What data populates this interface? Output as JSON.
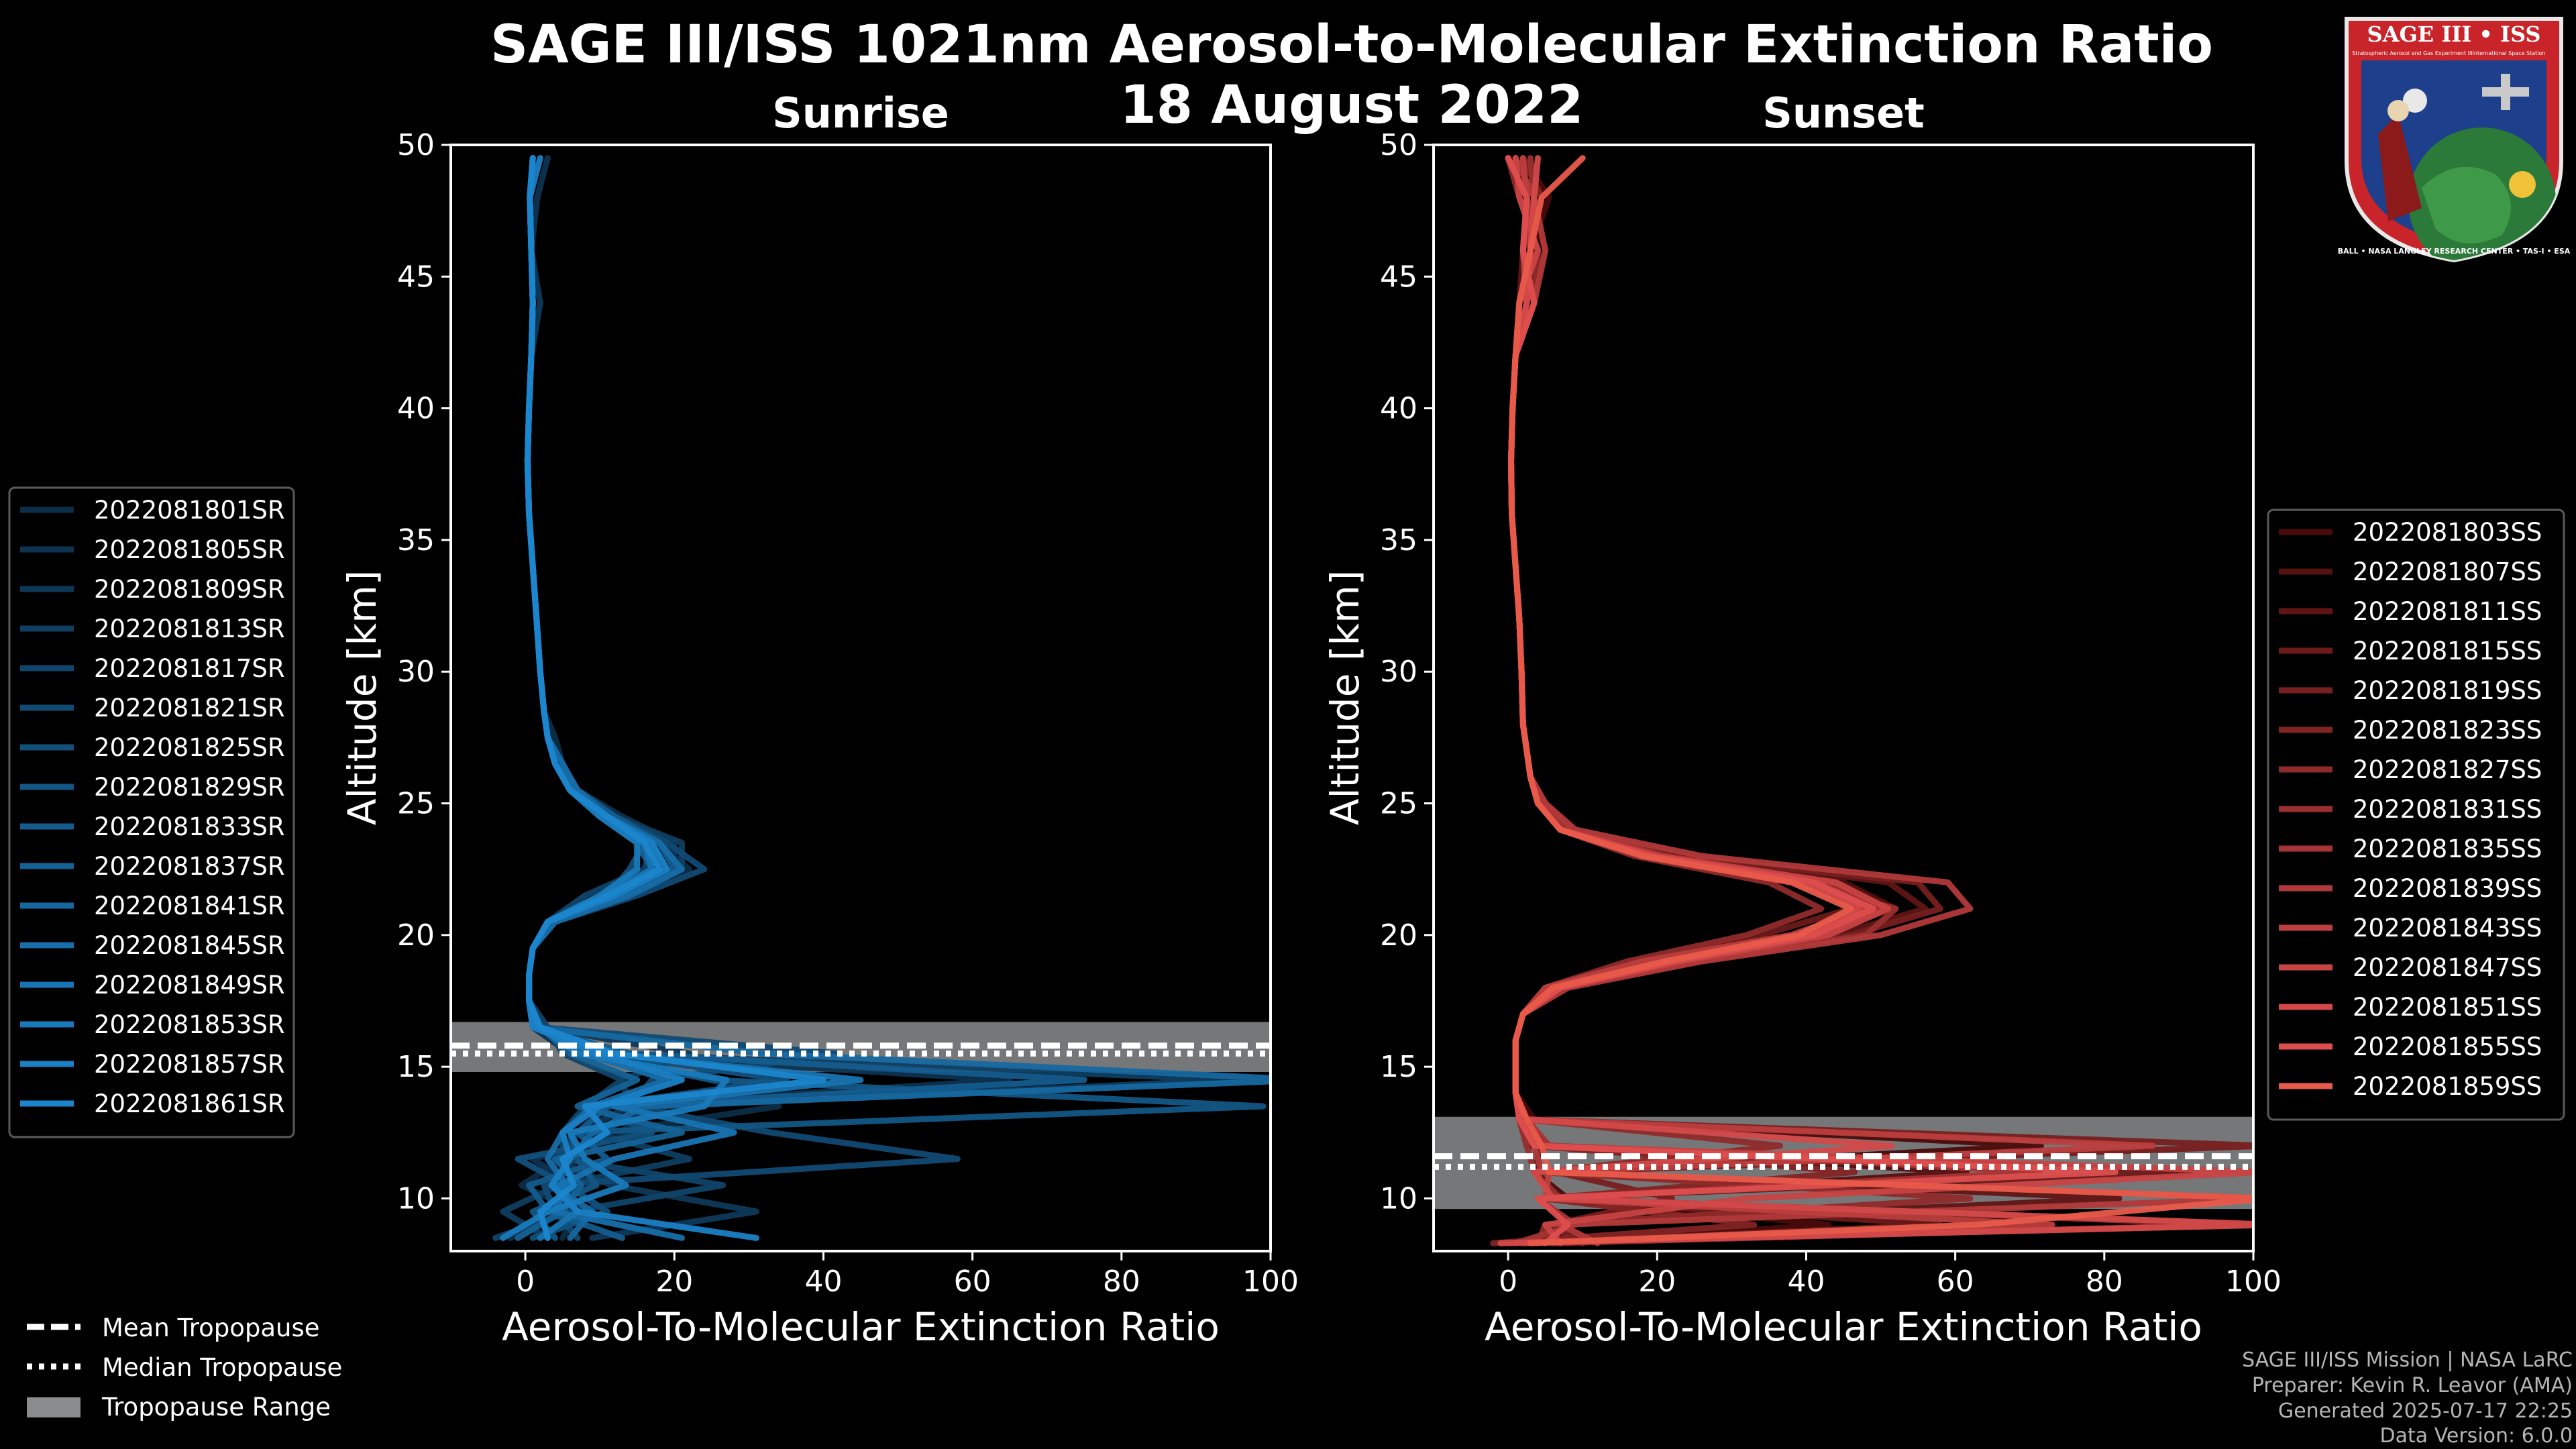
{
  "figure": {
    "title_line1": "SAGE III/ISS 1021nm Aerosol-to-Molecular Extinction Ratio",
    "title_line2": "18 August 2022"
  },
  "logo": {
    "name": "SAGE III • ISS",
    "subtitle_left": "Stratospheric Aerosol and Gas Experiment III",
    "subtitle_right": "International Space Station",
    "ring_text": "BALL • NASA LANGLEY RESEARCH CENTER • TAS-I • ESA"
  },
  "credits": {
    "line1": "SAGE III/ISS Mission | NASA LaRC",
    "line2": "Preparer: Kevin R. Leavor (AMA)",
    "line3": "Generated 2025-07-17 22:25",
    "line4": "Data Version: 6.0.0"
  },
  "tropopause_legend": [
    {
      "label": "Mean Tropopause",
      "style": "dashed"
    },
    {
      "label": "Median Tropopause",
      "style": "dotted"
    },
    {
      "label": "Tropopause Range",
      "style": "patch"
    }
  ],
  "colors": {
    "background": "#000000",
    "sunrise_base": "#1a8fd6",
    "sunset_base": "#e45a4a",
    "tropopause_band": "#8a8c8e",
    "axis": "#ffffff"
  },
  "chart_data": [
    {
      "type": "line",
      "title": "Sunrise",
      "xlabel": "Aerosol-To-Molecular Extinction Ratio",
      "ylabel": "Altitude [km]",
      "xlim": [
        -10,
        100
      ],
      "ylim": [
        8,
        50
      ],
      "xticks": [
        0,
        20,
        40,
        60,
        80,
        100
      ],
      "yticks": [
        10,
        15,
        20,
        25,
        30,
        35,
        40,
        45,
        50
      ],
      "legend_position": "left",
      "tropopause": {
        "mean": 15.8,
        "median": 15.5,
        "range": [
          14.8,
          16.7
        ]
      },
      "series_names": [
        "2022081801SR",
        "2022081805SR",
        "2022081809SR",
        "2022081813SR",
        "2022081817SR",
        "2022081821SR",
        "2022081825SR",
        "2022081829SR",
        "2022081833SR",
        "2022081837SR",
        "2022081841SR",
        "2022081845SR",
        "2022081849SR",
        "2022081853SR",
        "2022081857SR",
        "2022081861SR"
      ],
      "series_colors": [
        "#0c2d47",
        "#0d3350",
        "#0e3858",
        "#0f3e61",
        "#10446a",
        "#114a73",
        "#12507c",
        "#135685",
        "#145c8e",
        "#156297",
        "#1668a0",
        "#176ea9",
        "#1874b2",
        "#197abb",
        "#1a80c4",
        "#1b86cd"
      ],
      "altitudes": [
        8.5,
        9.5,
        10.5,
        11.5,
        12.5,
        13.5,
        14.5,
        15.5,
        16.5,
        17.5,
        18.5,
        19.5,
        20.5,
        21.5,
        22.5,
        23.5,
        24.5,
        25.5,
        26.5,
        27.5,
        28.5,
        30,
        32,
        34,
        36,
        38,
        40,
        42,
        44,
        46,
        48,
        49.5
      ],
      "base_profile": [
        1,
        1,
        1.5,
        2,
        3,
        4,
        5,
        2,
        1,
        0.5,
        0.5,
        1,
        3,
        10,
        16,
        15,
        10,
        6,
        4,
        3,
        2.5,
        2,
        1.5,
        1,
        0.5,
        0.3,
        0.5,
        0.8,
        1,
        0.8,
        0.6,
        1
      ],
      "series_offsets": [
        [
          4,
          6,
          -2,
          3,
          8,
          30,
          20,
          5,
          1,
          0,
          0,
          0,
          1,
          4,
          6,
          3,
          2,
          1,
          1,
          1,
          0,
          0,
          0,
          0,
          0,
          0,
          0,
          0,
          0,
          0,
          0,
          0
        ],
        [
          -3,
          2,
          5,
          -1,
          12,
          6,
          60,
          4,
          0,
          0,
          0,
          0,
          0,
          2,
          4,
          5,
          3,
          1,
          0,
          0,
          0,
          0,
          0,
          0,
          0,
          0,
          0,
          0,
          0,
          0,
          1,
          2
        ],
        [
          8,
          30,
          10,
          2,
          4,
          10,
          8,
          20,
          1,
          0,
          0,
          0,
          1,
          3,
          2,
          1,
          1,
          1,
          1,
          0,
          0,
          0,
          0,
          0,
          0,
          0,
          0,
          0,
          1,
          0,
          0,
          0
        ],
        [
          2,
          -4,
          3,
          20,
          6,
          15,
          90,
          10,
          0,
          0,
          0,
          0,
          0,
          1,
          5,
          6,
          2,
          0,
          0,
          0,
          0,
          0,
          0,
          0,
          0,
          0,
          0,
          0,
          0,
          0,
          0,
          0
        ],
        [
          -5,
          5,
          25,
          3,
          2,
          4,
          8,
          3,
          2,
          0,
          0,
          0,
          0,
          -2,
          0,
          2,
          1,
          0,
          0,
          0,
          0,
          0,
          0,
          0,
          0,
          0,
          0,
          0,
          0,
          0,
          0,
          0
        ],
        [
          6,
          3,
          1,
          56,
          30,
          10,
          12,
          40,
          1,
          0,
          0,
          0,
          1,
          5,
          8,
          4,
          2,
          1,
          1,
          0,
          0,
          0,
          0,
          0,
          0,
          0,
          0,
          0,
          0,
          0,
          0,
          0
        ],
        [
          0,
          10,
          4,
          -3,
          14,
          5,
          30,
          8,
          0,
          0,
          0,
          0,
          0,
          1,
          -2,
          1,
          0,
          0,
          0,
          0,
          0,
          0,
          0,
          0,
          0,
          0,
          0,
          0,
          0,
          0,
          0,
          0
        ],
        [
          3,
          0,
          8,
          5,
          3,
          95,
          20,
          6,
          1,
          0,
          0,
          0,
          0,
          2,
          3,
          2,
          1,
          0,
          0,
          0,
          0,
          0,
          0,
          0,
          0,
          0,
          0,
          0,
          0,
          0,
          0,
          0
        ],
        [
          12,
          2,
          -1,
          9,
          4,
          7,
          70,
          12,
          0,
          0,
          0,
          0,
          0,
          3,
          4,
          3,
          2,
          1,
          0,
          0,
          0,
          0,
          0,
          0,
          0,
          0,
          0,
          0,
          0,
          0,
          0,
          0
        ],
        [
          -2,
          4,
          6,
          2,
          18,
          3,
          10,
          4,
          1,
          0,
          0,
          0,
          0,
          0,
          1,
          0,
          0,
          0,
          0,
          0,
          0,
          0,
          0,
          0,
          0,
          0,
          0,
          0,
          0,
          0,
          0,
          0
        ],
        [
          5,
          8,
          2,
          4,
          6,
          12,
          100,
          30,
          0,
          0,
          0,
          0,
          0,
          2,
          2,
          2,
          1,
          0,
          0,
          0,
          0,
          0,
          0,
          0,
          0,
          0,
          0,
          0,
          0,
          0,
          0,
          0
        ],
        [
          20,
          3,
          4,
          1,
          2,
          5,
          14,
          6,
          1,
          0,
          0,
          0,
          1,
          4,
          5,
          3,
          1,
          1,
          1,
          0,
          0,
          0,
          0,
          0,
          0,
          0,
          0,
          0,
          0,
          0,
          0,
          0
        ],
        [
          1,
          6,
          3,
          10,
          25,
          8,
          40,
          9,
          0,
          0,
          0,
          0,
          0,
          1,
          1,
          1,
          0,
          0,
          0,
          0,
          0,
          0,
          0,
          0,
          0,
          0,
          0,
          0,
          0,
          0,
          0,
          0
        ],
        [
          -4,
          2,
          12,
          6,
          3,
          20,
          22,
          5,
          1,
          0,
          0,
          0,
          0,
          0,
          -1,
          0,
          0,
          0,
          0,
          0,
          0,
          0,
          0,
          0,
          0,
          0,
          0,
          0,
          0,
          0,
          0,
          0
        ],
        [
          30,
          6,
          2,
          4,
          2,
          6,
          16,
          8,
          0,
          0,
          0,
          0,
          0,
          2,
          3,
          2,
          1,
          0,
          0,
          0,
          0,
          0,
          0,
          0,
          0,
          0,
          0,
          0,
          0,
          0,
          0,
          1
        ],
        [
          2,
          1,
          5,
          3,
          8,
          4,
          35,
          10,
          1,
          0,
          0,
          0,
          0,
          1,
          2,
          1,
          1,
          0,
          0,
          0,
          0,
          0,
          0,
          0,
          0,
          0,
          0,
          0,
          0,
          0,
          0,
          0
        ]
      ]
    },
    {
      "type": "line",
      "title": "Sunset",
      "xlabel": "Aerosol-To-Molecular Extinction Ratio",
      "ylabel": "Altitude [km]",
      "xlim": [
        -10,
        100
      ],
      "ylim": [
        8,
        50
      ],
      "xticks": [
        0,
        20,
        40,
        60,
        80,
        100
      ],
      "yticks": [
        10,
        15,
        20,
        25,
        30,
        35,
        40,
        45,
        50
      ],
      "legend_position": "right",
      "tropopause": {
        "mean": 11.6,
        "median": 11.2,
        "range": [
          9.6,
          13.1
        ]
      },
      "series_names": [
        "2022081803SS",
        "2022081807SS",
        "2022081811SS",
        "2022081815SS",
        "2022081819SS",
        "2022081823SS",
        "2022081827SS",
        "2022081831SS",
        "2022081835SS",
        "2022081839SS",
        "2022081843SS",
        "2022081847SS",
        "2022081851SS",
        "2022081855SS",
        "2022081859SS"
      ],
      "series_colors": [
        "#4a0b0b",
        "#551010",
        "#601515",
        "#6c1a1a",
        "#771f1f",
        "#832424",
        "#8f2a2a",
        "#9a2f2f",
        "#a63434",
        "#b13939",
        "#bc3e3e",
        "#c84343",
        "#d34949",
        "#de4e4e",
        "#e85a4a"
      ],
      "altitudes": [
        8.3,
        9,
        10,
        11,
        12,
        13,
        14,
        15,
        16,
        17,
        18,
        19,
        20,
        21,
        22,
        23,
        24,
        25,
        26,
        27,
        28,
        30,
        32,
        34,
        36,
        38,
        40,
        42,
        44,
        46,
        48,
        49.5
      ],
      "base_profile": [
        2,
        3,
        2,
        1.5,
        1.5,
        1.5,
        1,
        1,
        1,
        2,
        6,
        20,
        38,
        44,
        35,
        16,
        6,
        4,
        3,
        2.5,
        2,
        1.8,
        1.5,
        1,
        0.5,
        0.4,
        0.6,
        1,
        1.5,
        2,
        1.5,
        0
      ],
      "series_offsets": [
        [
          3,
          40,
          6,
          2,
          70,
          2,
          0,
          0,
          0,
          0,
          1,
          2,
          4,
          6,
          5,
          3,
          1,
          0,
          0,
          0,
          0,
          0,
          0,
          0,
          0,
          0,
          0,
          0,
          2,
          1,
          4,
          2
        ],
        [
          -2,
          100,
          4,
          60,
          1,
          0,
          0,
          0,
          0,
          0,
          -1,
          -2,
          2,
          8,
          10,
          4,
          2,
          1,
          0,
          0,
          0,
          0,
          0,
          0,
          0,
          0,
          0,
          0,
          1,
          3,
          1,
          0
        ],
        [
          6,
          4,
          80,
          2,
          3,
          1,
          0,
          0,
          0,
          0,
          2,
          3,
          6,
          12,
          16,
          8,
          3,
          1,
          0,
          0,
          0,
          0,
          0,
          0,
          0,
          0,
          0,
          0,
          0,
          0,
          2,
          1
        ],
        [
          0,
          55,
          2,
          90,
          4,
          0,
          0,
          0,
          0,
          0,
          0,
          -3,
          -4,
          2,
          6,
          2,
          1,
          0,
          0,
          0,
          0,
          0,
          0,
          0,
          0,
          0,
          0,
          0,
          2,
          0,
          1,
          0
        ],
        [
          8,
          3,
          20,
          5,
          100,
          1,
          0,
          0,
          0,
          0,
          1,
          4,
          8,
          14,
          20,
          6,
          2,
          1,
          0,
          0,
          0,
          0,
          0,
          0,
          0,
          0,
          0,
          0,
          1,
          2,
          0,
          1
        ],
        [
          -4,
          30,
          3,
          45,
          2,
          0,
          0,
          0,
          0,
          0,
          2,
          1,
          3,
          4,
          6,
          3,
          1,
          0,
          0,
          0,
          0,
          0,
          0,
          0,
          0,
          0,
          0,
          0,
          0,
          1,
          3,
          2
        ],
        [
          2,
          2,
          60,
          3,
          35,
          1,
          0,
          0,
          0,
          0,
          -1,
          -4,
          -6,
          -2,
          0,
          1,
          1,
          0,
          0,
          0,
          0,
          0,
          0,
          0,
          0,
          0,
          0,
          0,
          2,
          2,
          0,
          0
        ],
        [
          4,
          95,
          5,
          2,
          1,
          0,
          0,
          0,
          0,
          0,
          1,
          5,
          10,
          8,
          4,
          2,
          1,
          0,
          0,
          0,
          0,
          0,
          0,
          0,
          0,
          0,
          0,
          0,
          1,
          0,
          2,
          3
        ],
        [
          -1,
          6,
          2,
          70,
          4,
          1,
          0,
          0,
          0,
          0,
          0,
          2,
          4,
          6,
          8,
          5,
          2,
          1,
          0,
          0,
          0,
          0,
          0,
          0,
          0,
          0,
          0,
          0,
          0,
          1,
          1,
          0
        ],
        [
          10,
          4,
          100,
          3,
          2,
          0,
          0,
          0,
          0,
          0,
          2,
          6,
          12,
          18,
          24,
          10,
          3,
          1,
          0,
          0,
          0,
          0,
          0,
          0,
          0,
          0,
          0,
          0,
          2,
          3,
          2,
          1
        ],
        [
          0,
          70,
          3,
          4,
          85,
          1,
          0,
          0,
          0,
          0,
          -1,
          -2,
          0,
          4,
          6,
          3,
          1,
          0,
          0,
          0,
          0,
          0,
          0,
          0,
          0,
          0,
          0,
          0,
          1,
          0,
          1,
          2
        ],
        [
          5,
          2,
          30,
          100,
          3,
          0,
          0,
          0,
          0,
          0,
          1,
          3,
          5,
          7,
          9,
          4,
          1,
          0,
          0,
          0,
          0,
          0,
          0,
          0,
          0,
          0,
          0,
          0,
          0,
          2,
          0,
          1
        ],
        [
          -3,
          100,
          4,
          2,
          50,
          1,
          0,
          0,
          0,
          0,
          0,
          1,
          2,
          3,
          4,
          2,
          1,
          0,
          0,
          0,
          0,
          0,
          0,
          0,
          0,
          0,
          0,
          0,
          1,
          1,
          2,
          4
        ],
        [
          3,
          5,
          2,
          80,
          2,
          0,
          0,
          0,
          0,
          0,
          1,
          2,
          3,
          5,
          6,
          3,
          1,
          0,
          0,
          0,
          0,
          0,
          0,
          0,
          0,
          0,
          0,
          0,
          2,
          0,
          1,
          0
        ],
        [
          1,
          60,
          100,
          4,
          3,
          1,
          0,
          0,
          0,
          0,
          0,
          1,
          1,
          2,
          3,
          2,
          1,
          0,
          0,
          0,
          0,
          0,
          0,
          0,
          0,
          0,
          0,
          0,
          0,
          1,
          3,
          10
        ]
      ]
    }
  ]
}
